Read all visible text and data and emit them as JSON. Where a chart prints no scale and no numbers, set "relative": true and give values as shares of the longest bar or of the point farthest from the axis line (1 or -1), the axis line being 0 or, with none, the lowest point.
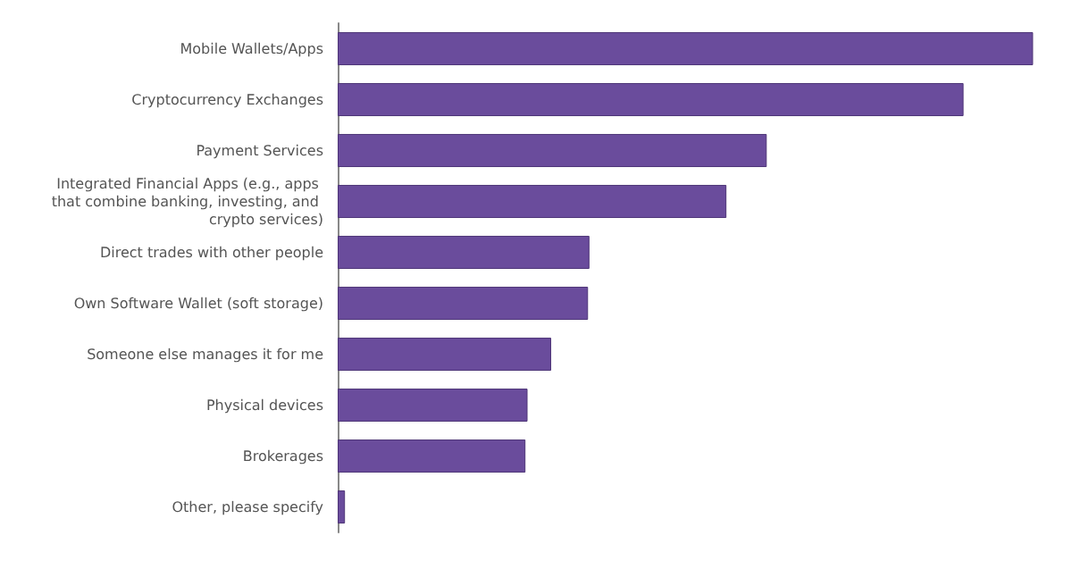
{
  "chart_data": {
    "type": "bar",
    "orientation": "horizontal",
    "relative": true,
    "categories": [
      "Mobile Wallets/Apps",
      "Cryptocurrency Exchanges",
      "Payment Services",
      "Integrated Financial Apps (e.g., apps that combine banking, investing, and crypto services)",
      "Direct trades with other people",
      "Own Software Wallet (soft storage)",
      "Someone else manages it for me",
      "Physical devices",
      "Brokerages",
      "Other, please specify"
    ],
    "values": [
      1,
      0.9,
      0.617,
      0.559,
      0.362,
      0.36,
      0.307,
      0.273,
      0.27,
      0.0105
    ],
    "color": "#6a4c9c"
  }
}
